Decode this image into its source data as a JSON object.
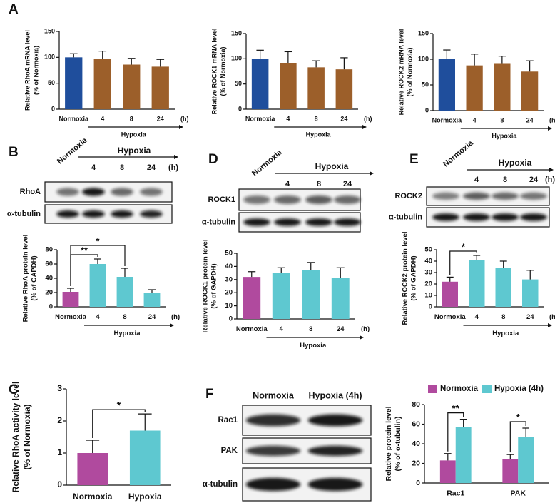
{
  "panel_labels": [
    "A",
    "B",
    "C",
    "D",
    "E",
    "F"
  ],
  "chart_data": [
    {
      "type": "bar",
      "ylabel": [
        "Relative RhoA mRNA level",
        "(% of Normoxia)"
      ],
      "categories": [
        "Normoxia",
        "4",
        "8",
        "24"
      ],
      "values": [
        100,
        97,
        86,
        82
      ],
      "errors": [
        7,
        15,
        12,
        14
      ],
      "colors": [
        "#1f4e9c",
        "#9c5f2a",
        "#9c5f2a",
        "#9c5f2a"
      ],
      "ylim": [
        0,
        150
      ],
      "yticks": [
        0,
        50,
        100,
        150
      ],
      "group_label": "Hypoxia",
      "unit_label": "(h)"
    },
    {
      "type": "bar",
      "ylabel": [
        "Relative ROCK1 mRNA level",
        "(% of Normoxia)"
      ],
      "categories": [
        "Normoxia",
        "4",
        "8",
        "24"
      ],
      "values": [
        100,
        91,
        83,
        79
      ],
      "errors": [
        17,
        23,
        13,
        23
      ],
      "colors": [
        "#1f4e9c",
        "#9c5f2a",
        "#9c5f2a",
        "#9c5f2a"
      ],
      "ylim": [
        0,
        150
      ],
      "yticks": [
        0,
        50,
        100,
        150
      ],
      "group_label": "Hypoxia",
      "unit_label": "(h)"
    },
    {
      "type": "bar",
      "ylabel": [
        "Relative ROCK2 mRNA level",
        "(% of Normoxia)"
      ],
      "categories": [
        "Normoxia",
        "4",
        "8",
        "24"
      ],
      "values": [
        100,
        88,
        91,
        76
      ],
      "errors": [
        18,
        22,
        15,
        21
      ],
      "colors": [
        "#1f4e9c",
        "#9c5f2a",
        "#9c5f2a",
        "#9c5f2a"
      ],
      "ylim": [
        0,
        150
      ],
      "yticks": [
        0,
        50,
        100,
        150
      ],
      "group_label": "Hypoxia",
      "unit_label": "(h)"
    },
    {
      "type": "bar",
      "ylabel": [
        "Relative RhoA protein level",
        "(% of GAPDH)"
      ],
      "categories": [
        "Normoxia",
        "4",
        "8",
        "24"
      ],
      "values": [
        21,
        60,
        42,
        20
      ],
      "errors": [
        5,
        7,
        12,
        4
      ],
      "colors": [
        "#b04a9e",
        "#5ec8d0",
        "#5ec8d0",
        "#5ec8d0"
      ],
      "ylim": [
        0,
        80
      ],
      "yticks": [
        0,
        20,
        40,
        60,
        80
      ],
      "significance": [
        {
          "label": "**",
          "between": [
            "Normoxia",
            "4"
          ]
        },
        {
          "label": "*",
          "between": [
            "Normoxia",
            "8"
          ]
        }
      ],
      "group_label": "Hypoxia",
      "unit_label": "(h)"
    },
    {
      "type": "bar",
      "ylabel": [
        "Relative ROCK1 protein level",
        "(% of GAPDH)"
      ],
      "categories": [
        "Normoxia",
        "4",
        "8",
        "24"
      ],
      "values": [
        32,
        35,
        37,
        31
      ],
      "errors": [
        4,
        4,
        6,
        8
      ],
      "colors": [
        "#b04a9e",
        "#5ec8d0",
        "#5ec8d0",
        "#5ec8d0"
      ],
      "ylim": [
        0,
        50
      ],
      "yticks": [
        0,
        10,
        20,
        30,
        40,
        50
      ],
      "group_label": "Hypoxia",
      "unit_label": "(h)"
    },
    {
      "type": "bar",
      "ylabel": [
        "Relative ROCK2 protein level",
        "(% of GAPDH)"
      ],
      "categories": [
        "Normoxia",
        "4",
        "8",
        "24"
      ],
      "values": [
        22,
        41,
        34,
        24
      ],
      "errors": [
        4,
        4,
        6,
        8
      ],
      "colors": [
        "#b04a9e",
        "#5ec8d0",
        "#5ec8d0",
        "#5ec8d0"
      ],
      "ylim": [
        0,
        50
      ],
      "yticks": [
        0,
        10,
        20,
        30,
        40,
        50
      ],
      "significance": [
        {
          "label": "*",
          "between": [
            "Normoxia",
            "4"
          ]
        }
      ],
      "group_label": "Hypoxia",
      "unit_label": "(h)"
    },
    {
      "type": "bar",
      "ylabel": [
        "Relative RhoA activity level",
        "(% of Normoxia)"
      ],
      "categories": [
        "Normoxia",
        "Hypoxia"
      ],
      "values": [
        1,
        1.7
      ],
      "errors": [
        0.4,
        0.52
      ],
      "colors": [
        "#b04a9e",
        "#5ec8d0"
      ],
      "ylim": [
        0,
        3
      ],
      "yticks": [
        0,
        1,
        2,
        3
      ],
      "significance": [
        {
          "label": "*",
          "between": [
            "Normoxia",
            "Hypoxia"
          ]
        }
      ]
    },
    {
      "type": "grouped_bar",
      "ylabel": [
        "Relative  protein level",
        "(% of α-tubulin)"
      ],
      "categories": [
        "Rac1",
        "PAK"
      ],
      "series": [
        {
          "name": "Normoxia",
          "color": "#b04a9e",
          "values": [
            23,
            24
          ],
          "errors": [
            7,
            5
          ]
        },
        {
          "name": "Hypoxia (4h)",
          "color": "#5ec8d0",
          "values": [
            57,
            47
          ],
          "errors": [
            8,
            9
          ]
        }
      ],
      "ylim": [
        0,
        80
      ],
      "yticks": [
        0,
        20,
        40,
        60,
        80
      ],
      "significance": [
        {
          "label": "**",
          "category": "Rac1"
        },
        {
          "label": "*",
          "category": "PAK"
        }
      ],
      "legend": "top"
    }
  ],
  "blots": [
    {
      "rows": [
        "RhoA",
        "α-tubulin"
      ],
      "control": "Normoxia",
      "group_label": "Hypoxia",
      "times": [
        "4",
        "8",
        "24"
      ],
      "unit_label": "(h)"
    },
    {
      "rows": [
        "ROCK1",
        "α-tubulin"
      ],
      "control": "Normoxia",
      "group_label": "Hypoxia",
      "times": [
        "4",
        "8",
        "24"
      ]
    },
    {
      "rows": [
        "ROCK2",
        "α-tubulin"
      ],
      "control": "Normoxia",
      "group_label": "Hypoxia",
      "times": [
        "4",
        "8",
        "24"
      ],
      "unit_label": "(h)"
    },
    {
      "rows": [
        "Rac1",
        "PAK",
        "α-tubulin"
      ],
      "columns": [
        "Normoxia",
        "Hypoxia (4h)"
      ]
    }
  ]
}
